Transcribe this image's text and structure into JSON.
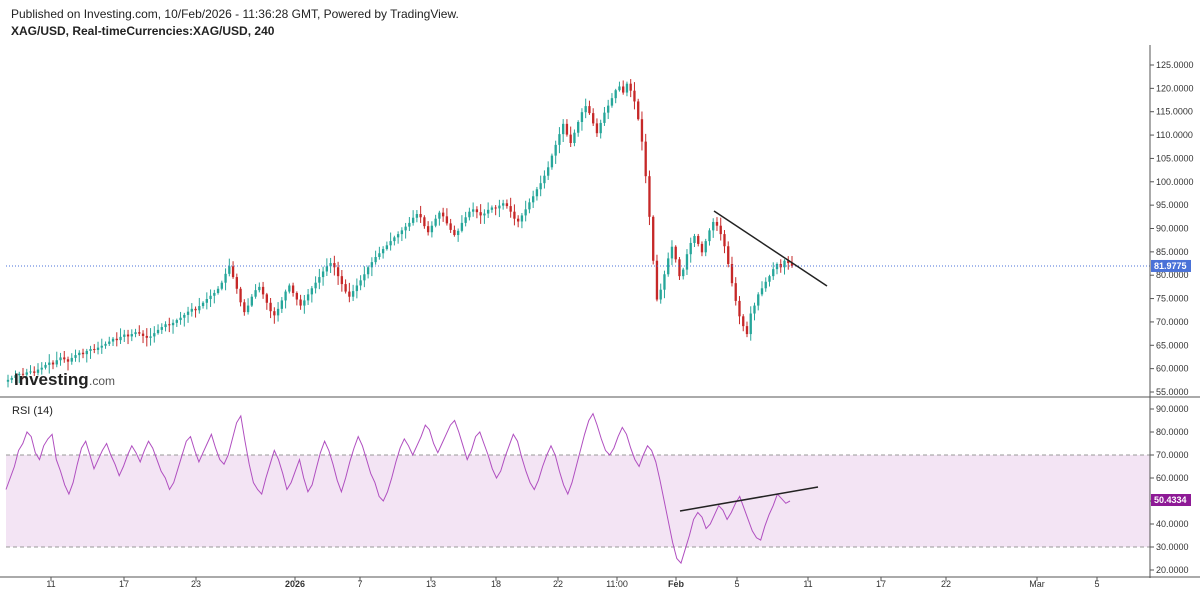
{
  "header": {
    "published": "Published on Investing.com, 10/Feb/2026 - 11:36:28 GMT, Powered by TradingView.",
    "symbol": "XAG/USD, Real-timeCurrencies:XAG/USD, 240"
  },
  "logo": {
    "main": "Investing",
    "suffix": ".com"
  },
  "colors": {
    "up": "#26a69a",
    "down": "#c62828",
    "rsi_line": "#b04fc0",
    "rsi_band": "#f3e4f4",
    "price_line": "#4a72d8",
    "price_tag": "#4a72d8",
    "rsi_tag": "#8e1a96",
    "trendline": "#222222"
  },
  "chart_data": [
    {
      "type": "candlestick",
      "title": "XAG/USD, Real-timeCurrencies:XAG/USD, 240",
      "y_ticks": [
        "125.0000",
        "120.0000",
        "115.0000",
        "110.0000",
        "105.0000",
        "100.0000",
        "95.0000",
        "90.0000",
        "85.0000",
        "80.0000",
        "75.0000",
        "70.0000",
        "65.0000",
        "60.0000",
        "55.0000"
      ],
      "ylim": [
        55,
        125
      ],
      "last_price": 81.9775,
      "last_price_label": "81.9775",
      "x_ticks": [
        "11",
        "17",
        "23",
        "2026",
        "7",
        "13",
        "18",
        "22",
        "11:00",
        "Feb",
        "5",
        "11",
        "17",
        "22",
        "Mar",
        "5"
      ],
      "bold_x_ticks": [
        "2026",
        "Feb"
      ],
      "closes": [
        57.6,
        58.0,
        58.6,
        58.9,
        58.7,
        59.2,
        59.4,
        59.1,
        59.8,
        60.2,
        60.8,
        61.3,
        60.9,
        61.8,
        62.4,
        62.0,
        61.5,
        62.3,
        62.9,
        63.4,
        63.1,
        63.8,
        64.2,
        64.0,
        64.5,
        64.9,
        65.3,
        65.8,
        66.4,
        66.1,
        66.8,
        67.3,
        66.9,
        67.4,
        67.8,
        67.5,
        67.0,
        66.6,
        66.9,
        67.6,
        68.3,
        68.9,
        69.5,
        69.3,
        69.8,
        70.4,
        70.9,
        71.5,
        72.2,
        72.8,
        72.5,
        73.4,
        74.1,
        74.9,
        75.6,
        76.2,
        77.1,
        78.4,
        80.3,
        81.9,
        79.6,
        77.1,
        74.2,
        72.1,
        73.5,
        75.4,
        76.8,
        77.5,
        75.9,
        74.1,
        72.3,
        71.4,
        72.8,
        74.6,
        76.5,
        77.8,
        76.2,
        74.8,
        73.5,
        74.6,
        75.9,
        77.2,
        78.4,
        79.6,
        80.8,
        81.9,
        82.6,
        81.7,
        79.8,
        78.1,
        76.5,
        75.4,
        76.6,
        77.8,
        78.9,
        80.2,
        81.7,
        82.8,
        83.9,
        84.7,
        85.6,
        86.4,
        87.3,
        88.1,
        88.8,
        89.6,
        90.4,
        91.2,
        92.3,
        93.1,
        92.4,
        90.5,
        89.2,
        90.6,
        92.1,
        93.4,
        92.6,
        91.1,
        89.7,
        88.6,
        89.5,
        91.2,
        92.4,
        93.6,
        94.1,
        93.5,
        92.8,
        93.2,
        94.0,
        94.5,
        94.3,
        94.9,
        95.4,
        94.8,
        93.6,
        92.1,
        91.5,
        92.8,
        94.1,
        95.6,
        96.9,
        98.4,
        99.7,
        101.3,
        103.1,
        105.6,
        107.9,
        110.2,
        112.4,
        110.1,
        108.3,
        110.5,
        112.8,
        114.9,
        116.2,
        114.7,
        112.5,
        110.4,
        112.6,
        114.8,
        116.3,
        117.9,
        119.6,
        120.4,
        119.1,
        121.0,
        119.5,
        117.2,
        113.4,
        108.6,
        101.2,
        92.5,
        83.1,
        74.8,
        76.9,
        80.2,
        83.6,
        86.1,
        83.4,
        79.8,
        81.2,
        84.5,
        86.9,
        88.4,
        86.7,
        84.9,
        87.3,
        89.6,
        91.4,
        90.6,
        88.8,
        86.2,
        82.4,
        78.3,
        74.5,
        71.2,
        69.1,
        67.4,
        71.8,
        73.5,
        75.9,
        77.2,
        78.6,
        79.8,
        81.3,
        82.4,
        81.7,
        83.1,
        82.6,
        82.0
      ]
    },
    {
      "type": "line",
      "title": "RSI (14)",
      "y_ticks": [
        "90.0000",
        "80.0000",
        "70.0000",
        "60.0000",
        "50.0000",
        "40.0000",
        "30.0000",
        "20.0000"
      ],
      "ylim": [
        20,
        90
      ],
      "band": [
        30,
        70
      ],
      "last_value": 50.4334,
      "last_value_label": "50.4334",
      "values": [
        55,
        60,
        65,
        72,
        75,
        80,
        78,
        71,
        68,
        74,
        77,
        79,
        68,
        63,
        57,
        53,
        58,
        66,
        73,
        76,
        70,
        64,
        68,
        72,
        75,
        70,
        66,
        61,
        65,
        70,
        74,
        71,
        67,
        72,
        76,
        73,
        68,
        63,
        60,
        55,
        58,
        64,
        70,
        76,
        78,
        72,
        67,
        71,
        75,
        79,
        73,
        68,
        66,
        70,
        77,
        84,
        87,
        76,
        66,
        58,
        55,
        53,
        60,
        66,
        72,
        68,
        62,
        55,
        58,
        63,
        68,
        60,
        54,
        57,
        64,
        71,
        76,
        72,
        66,
        59,
        54,
        60,
        67,
        73,
        78,
        74,
        68,
        62,
        58,
        52,
        50,
        54,
        60,
        67,
        73,
        77,
        74,
        70,
        74,
        78,
        83,
        81,
        75,
        71,
        75,
        79,
        83,
        85,
        80,
        74,
        68,
        72,
        78,
        80,
        75,
        70,
        64,
        60,
        63,
        69,
        74,
        79,
        76,
        69,
        63,
        58,
        55,
        59,
        65,
        70,
        74,
        70,
        63,
        57,
        53,
        58,
        65,
        72,
        79,
        85,
        88,
        83,
        77,
        72,
        70,
        73,
        78,
        82,
        79,
        73,
        68,
        65,
        70,
        74,
        72,
        67,
        59,
        50,
        41,
        32,
        25,
        23,
        29,
        35,
        42,
        45,
        43,
        38,
        40,
        44,
        48,
        46,
        42,
        45,
        49,
        52,
        47,
        42,
        37,
        34,
        33,
        39,
        44,
        48,
        53,
        51,
        49,
        50
      ]
    }
  ]
}
